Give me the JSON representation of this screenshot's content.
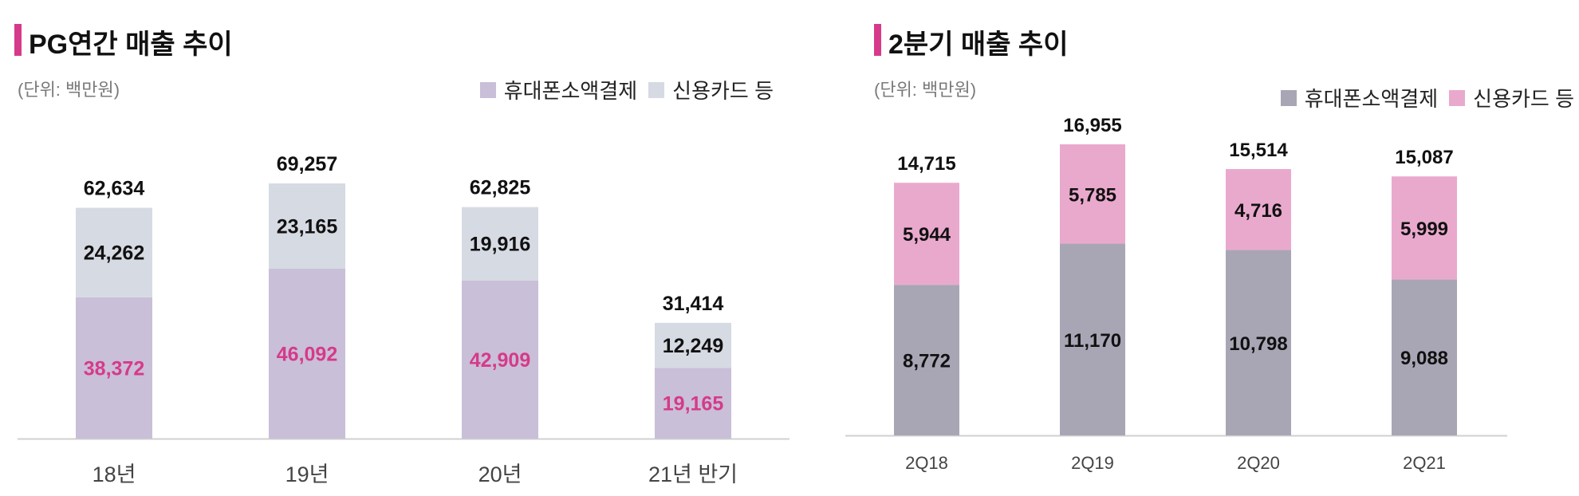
{
  "chart_data": [
    {
      "type": "bar",
      "stacked": true,
      "title": "PG연간 매출 추이",
      "unit_label": "(단위: 백만원)",
      "categories": [
        "18년",
        "19년",
        "20년",
        "21년 반기"
      ],
      "series": [
        {
          "name": "휴대폰소액결제",
          "values": [
            38372,
            46092,
            42909,
            19165
          ],
          "labels": [
            "38,372",
            "46,092",
            "42,909",
            "19,165"
          ],
          "color": "#c9bfd8",
          "label_color": "#d63a8a"
        },
        {
          "name": "신용카드 등",
          "values": [
            24262,
            23165,
            19916,
            12249
          ],
          "labels": [
            "24,262",
            "23,165",
            "19,916",
            "12,249"
          ],
          "color": "#d6dae3",
          "label_color": "#111111"
        }
      ],
      "totals": [
        62634,
        69257,
        62825,
        31414
      ],
      "total_labels": [
        "62,634",
        "69,257",
        "62,825",
        "31,414"
      ],
      "ylim": [
        0,
        69257
      ],
      "legend_position": "top-right"
    },
    {
      "type": "bar",
      "stacked": true,
      "title": "2분기 매출 추이",
      "unit_label": "(단위: 백만원)",
      "categories": [
        "2Q18",
        "2Q19",
        "2Q20",
        "2Q21"
      ],
      "series": [
        {
          "name": "휴대폰소액결제",
          "values": [
            8772,
            11170,
            10798,
            9088
          ],
          "labels": [
            "8,772",
            "11,170",
            "10,798",
            "9,088"
          ],
          "color": "#a8a6b5",
          "label_color": "#111111"
        },
        {
          "name": "신용카드 등",
          "values": [
            5944,
            5785,
            4716,
            5999
          ],
          "labels": [
            "5,944",
            "5,785",
            "4,716",
            "5,999"
          ],
          "color": "#e9a9cd",
          "label_color": "#111111"
        }
      ],
      "totals": [
        14715,
        16955,
        15514,
        15087
      ],
      "total_labels": [
        "14,715",
        "16,955",
        "15,514",
        "15,087"
      ],
      "ylim": [
        0,
        16955
      ],
      "legend_position": "top-right"
    }
  ]
}
